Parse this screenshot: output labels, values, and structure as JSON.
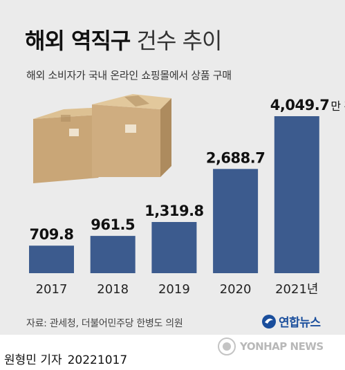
{
  "header": {
    "title_bold": "해외 역직구",
    "title_light": "건수 추이",
    "subtitle": "해외 소비자가 국내 온라인 쇼핑몰에서 상품 구매"
  },
  "footer": {
    "source": "자료: 관세청, 더불어민주당 한병도 의원",
    "logo_text": "연합뉴스",
    "watermark": "YONHAP NEWS",
    "author": "원형민 기자",
    "date": "20221017"
  },
  "colors": {
    "bar": "#3c5b8e",
    "background": "#ebebeb"
  },
  "icons": [
    "cardboard-boxes-illustration",
    "yonhap-logo-icon",
    "yonhap-watermark-icon"
  ],
  "chart_data": {
    "type": "bar",
    "categories": [
      "2017",
      "2018",
      "2019",
      "2020",
      "2021"
    ],
    "category_suffix_last": "년",
    "values": [
      709.8,
      961.5,
      1319.8,
      2688.7,
      4049.7
    ],
    "value_labels": [
      "709.8",
      "961.5",
      "1,319.8",
      "2,688.7",
      "4,049.7"
    ],
    "unit_suffix": "만 건",
    "ylim": [
      0,
      4049.7
    ],
    "grid": false
  }
}
